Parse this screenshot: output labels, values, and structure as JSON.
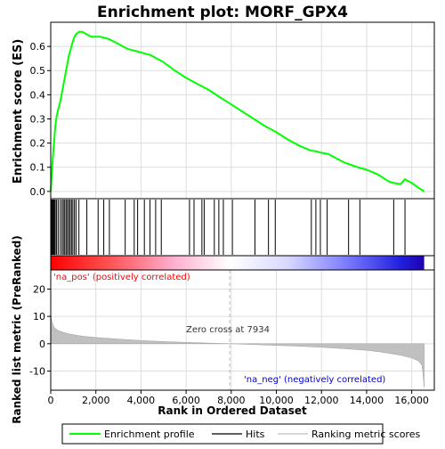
{
  "chart_data": {
    "type": "line",
    "title": "Enrichment plot: MORF_GPX4",
    "xlabel": "Rank in Ordered Dataset",
    "ylabel_top": "Enrichment score (ES)",
    "ylabel_bottom": "Ranked list metric (PreRanked)",
    "xlim": [
      0,
      17000
    ],
    "top_ylim": [
      -0.03,
      0.7
    ],
    "bottom_ylim": [
      -17,
      27
    ],
    "x_ticks": [
      0,
      2000,
      4000,
      6000,
      8000,
      10000,
      12000,
      14000,
      16000
    ],
    "x_tick_labels": [
      "0",
      "2,000",
      "4,000",
      "6,000",
      "8,000",
      "10,000",
      "12,000",
      "14,000",
      "16,000"
    ],
    "top_y_ticks": [
      0.0,
      0.1,
      0.2,
      0.3,
      0.4,
      0.5,
      0.6
    ],
    "top_y_tick_labels": [
      "0.0",
      "0.1",
      "0.2",
      "0.3",
      "0.4",
      "0.5",
      "0.6"
    ],
    "bottom_y_ticks": [
      -10,
      0,
      10,
      20
    ],
    "bottom_y_tick_labels": [
      "-10",
      "0",
      "10",
      "20"
    ],
    "grid": true,
    "enrichment_profile": {
      "x": [
        0,
        40,
        80,
        120,
        160,
        200,
        260,
        330,
        420,
        500,
        560,
        620,
        680,
        740,
        800,
        860,
        920,
        980,
        1050,
        1120,
        1250,
        1400,
        1600,
        1800,
        2000,
        2200,
        2400,
        2600,
        2800,
        3000,
        3200,
        3400,
        3600,
        3800,
        4000,
        4200,
        4400,
        4600,
        4800,
        5000,
        5500,
        6000,
        6500,
        7000,
        7500,
        8000,
        8500,
        9000,
        9500,
        10000,
        10500,
        11000,
        11500,
        11800,
        12000,
        12300,
        12600,
        13000,
        13300,
        13600,
        14000,
        14500,
        15000,
        15200,
        15500,
        15700,
        16000,
        16300,
        16550
      ],
      "y": [
        0.0,
        0.06,
        0.12,
        0.17,
        0.22,
        0.27,
        0.31,
        0.34,
        0.37,
        0.41,
        0.44,
        0.47,
        0.5,
        0.53,
        0.56,
        0.58,
        0.6,
        0.62,
        0.64,
        0.65,
        0.66,
        0.66,
        0.65,
        0.64,
        0.64,
        0.64,
        0.635,
        0.63,
        0.62,
        0.61,
        0.6,
        0.59,
        0.585,
        0.58,
        0.575,
        0.57,
        0.565,
        0.555,
        0.545,
        0.535,
        0.5,
        0.47,
        0.445,
        0.42,
        0.39,
        0.36,
        0.33,
        0.3,
        0.27,
        0.245,
        0.215,
        0.19,
        0.17,
        0.165,
        0.16,
        0.155,
        0.14,
        0.12,
        0.11,
        0.1,
        0.09,
        0.07,
        0.04,
        0.035,
        0.03,
        0.05,
        0.035,
        0.015,
        0.0
      ]
    },
    "hits": [
      40,
      80,
      120,
      160,
      200,
      260,
      330,
      420,
      500,
      560,
      620,
      680,
      740,
      800,
      860,
      920,
      980,
      1050,
      1120,
      1250,
      1600,
      2100,
      2350,
      2600,
      3300,
      3700,
      3850,
      4150,
      4400,
      4650,
      4900,
      6150,
      6350,
      6700,
      6800,
      7250,
      7450,
      7650,
      8050,
      9050,
      9650,
      9950,
      11550,
      11750,
      11950,
      12250,
      13200,
      13700,
      15200,
      15700
    ],
    "ranked_metric": {
      "x": [
        0,
        50,
        150,
        300,
        500,
        800,
        1200,
        1600,
        2000,
        3000,
        4000,
        5000,
        6000,
        7000,
        7934,
        9000,
        10000,
        11000,
        12000,
        13000,
        14000,
        14500,
        15000,
        15500,
        16000,
        16300,
        16450,
        16500,
        16550
      ],
      "y": [
        11.5,
        8.0,
        6.0,
        5.0,
        4.3,
        3.6,
        3.0,
        2.6,
        2.3,
        1.7,
        1.2,
        0.8,
        0.5,
        0.25,
        0.0,
        -0.3,
        -0.6,
        -0.9,
        -1.3,
        -1.8,
        -2.4,
        -2.9,
        -3.5,
        -4.2,
        -5.2,
        -6.3,
        -8.0,
        -11.0,
        -16.0
      ]
    },
    "zero_cross_rank": 7934,
    "annotations": {
      "zero_cross": "Zero cross at 7934",
      "pos_label": "'na_pos' (positively correlated)",
      "neg_label": "'na_neg' (negatively correlated)"
    },
    "legend": {
      "placement": "bottom",
      "entries": [
        "Enrichment profile",
        "Hits",
        "Ranking metric scores"
      ]
    },
    "colors": {
      "profile": "#00ff00",
      "hits": "#000000",
      "metric_fill": "#c0c0c0",
      "pos_text": "#ff0000",
      "neg_text": "#0000cc",
      "grid": "#dddddd"
    },
    "heat_bar_stops": [
      {
        "rank": 0,
        "color": "#ff0000"
      },
      {
        "rank": 2500,
        "color": "#ff5050"
      },
      {
        "rank": 5500,
        "color": "#ffb0d0"
      },
      {
        "rank": 7934,
        "color": "#ffffff"
      },
      {
        "rank": 10500,
        "color": "#d8d8ff"
      },
      {
        "rank": 13000,
        "color": "#8080ff"
      },
      {
        "rank": 15500,
        "color": "#2020e0"
      },
      {
        "rank": 16550,
        "color": "#2000b0"
      }
    ]
  }
}
